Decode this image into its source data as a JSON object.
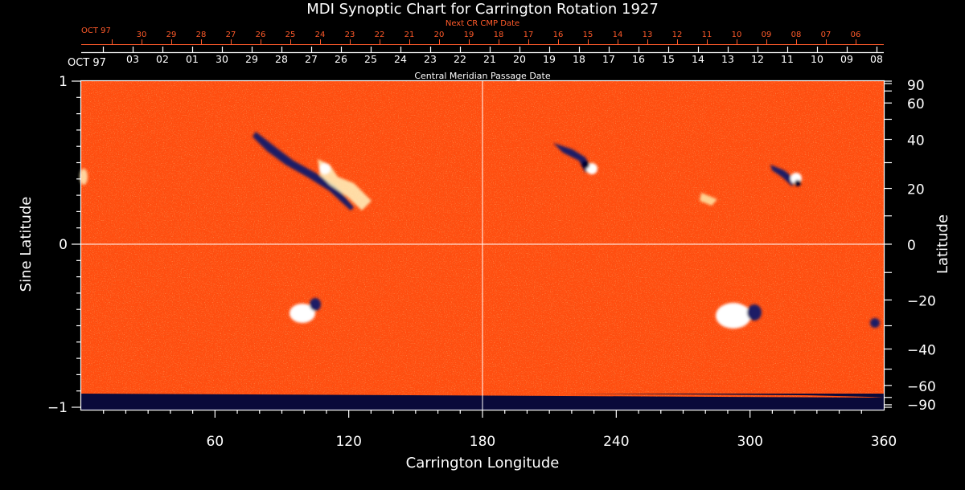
{
  "chart_data": {
    "type": "heatmap",
    "title": "MDI Synoptic Chart for Carrington Rotation 1927",
    "xlabel": "Carrington Longitude",
    "ylabel_left": "Sine Latitude",
    "ylabel_right": "Latitude",
    "xlim": [
      0,
      360
    ],
    "ylim": [
      -1,
      1
    ],
    "x_ticks": [
      60,
      120,
      180,
      240,
      300,
      360
    ],
    "y_left_ticks": [
      {
        "value": 1,
        "label": "1"
      },
      {
        "value": 0,
        "label": "0"
      },
      {
        "value": -1,
        "label": "−1"
      }
    ],
    "y_right_ticks_latitude": [
      90,
      60,
      40,
      20,
      0,
      -20,
      -40,
      -60,
      -90
    ],
    "top_axis": {
      "label": "Central Meridian Passage Date",
      "start_label": "OCT 97",
      "dates": [
        "03",
        "02",
        "01",
        "30",
        "29",
        "28",
        "27",
        "26",
        "25",
        "24",
        "23",
        "22",
        "21",
        "20",
        "19",
        "18",
        "17",
        "16",
        "15",
        "14",
        "13",
        "12",
        "11",
        "10",
        "09",
        "08"
      ]
    },
    "next_axis": {
      "label": "Next CR CMP Date",
      "start_label": "OCT 97",
      "dates": [
        "30",
        "29",
        "28",
        "27",
        "26",
        "25",
        "24",
        "23",
        "22",
        "21",
        "20",
        "19",
        "18",
        "17",
        "16",
        "15",
        "14",
        "13",
        "12",
        "11",
        "10",
        "09",
        "08",
        "07",
        "06"
      ]
    },
    "background_color": "#ff4e10",
    "colors": {
      "positive": "#ffffff",
      "negative": "#1a1a66",
      "neutral": "#ff5010",
      "no_data": "#0a0a3a"
    },
    "regions": [
      {
        "lon": 110,
        "lat_sin": 0.44,
        "polarity": "mixed",
        "note": ""
      },
      {
        "lon": 228,
        "lat_sin": 0.49,
        "polarity": "mixed",
        "note": ""
      },
      {
        "lon": 318,
        "lat_sin": 0.4,
        "polarity": "mixed",
        "note": ""
      },
      {
        "lon": 100,
        "lat_sin": -0.4,
        "polarity": "mixed",
        "note": ""
      },
      {
        "lon": 293,
        "lat_sin": -0.45,
        "polarity": "mixed",
        "note": ""
      }
    ]
  }
}
